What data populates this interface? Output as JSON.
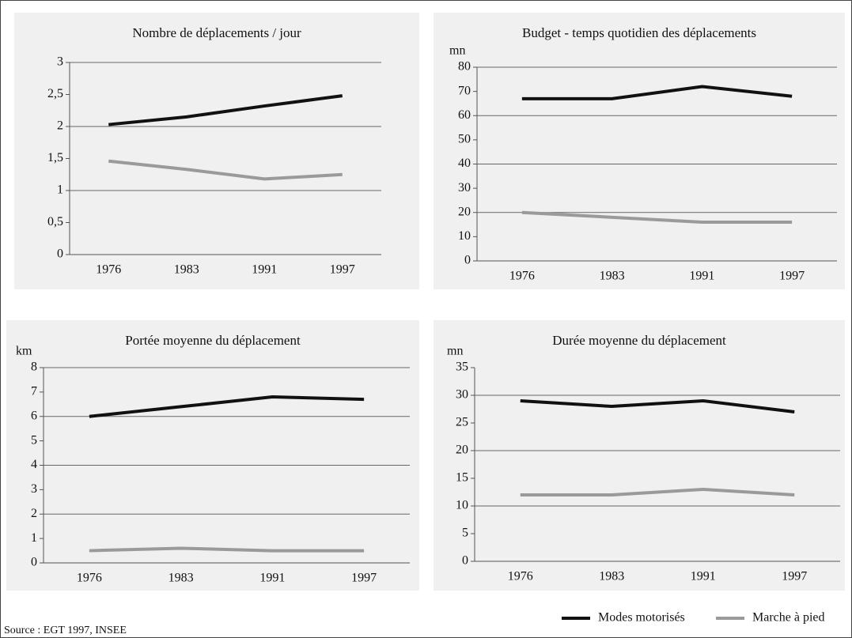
{
  "chart_data": [
    {
      "type": "line",
      "title": "Nombre de déplacements / jour",
      "categories": [
        "1976",
        "1983",
        "1991",
        "1997"
      ],
      "series": [
        {
          "values": [
            2.03,
            2.15,
            2.32,
            2.48
          ]
        },
        {
          "values": [
            1.46,
            1.33,
            1.18,
            1.25
          ]
        }
      ],
      "ylim": [
        0,
        3
      ],
      "yticks": [
        0,
        {
          "value": 0.5,
          "label": "0,5"
        },
        1,
        {
          "value": 1.5,
          "label": "1,5"
        },
        2,
        {
          "value": 2.5,
          "label": "2,5"
        },
        3
      ],
      "grid": true
    },
    {
      "type": "line",
      "title": "Budget - temps quotidien des déplacements",
      "ylabel": "mn",
      "categories": [
        "1976",
        "1983",
        "1991",
        "1997"
      ],
      "series": [
        {
          "values": [
            67,
            67,
            72,
            68
          ]
        },
        {
          "values": [
            20,
            18,
            16,
            16
          ]
        }
      ],
      "ylim": [
        0,
        80
      ],
      "yticks": [
        0,
        10,
        20,
        30,
        40,
        50,
        60,
        70,
        80
      ],
      "grid": true
    },
    {
      "type": "line",
      "title": "Portée moyenne du déplacement",
      "ylabel": "km",
      "categories": [
        "1976",
        "1983",
        "1991",
        "1997"
      ],
      "series": [
        {
          "values": [
            6.0,
            6.4,
            6.8,
            6.7
          ]
        },
        {
          "values": [
            0.5,
            0.6,
            0.5,
            0.5
          ]
        }
      ],
      "ylim": [
        0,
        8
      ],
      "yticks": [
        0,
        1,
        2,
        3,
        4,
        5,
        6,
        7,
        8
      ],
      "grid": true
    },
    {
      "type": "line",
      "title": "Durée moyenne du déplacement",
      "ylabel": "mn",
      "categories": [
        "1976",
        "1983",
        "1991",
        "1997"
      ],
      "series": [
        {
          "values": [
            29,
            28,
            29,
            27
          ]
        },
        {
          "values": [
            12,
            12,
            13,
            12
          ]
        }
      ],
      "ylim": [
        0,
        35
      ],
      "yticks": [
        0,
        5,
        10,
        15,
        20,
        25,
        30,
        35
      ],
      "grid": true
    }
  ],
  "legend": [
    {
      "name": "Modes motorisés",
      "color": "#111111"
    },
    {
      "name": "Marche à pied",
      "color": "#9a9a9a"
    }
  ],
  "source": "Source : EGT 1997, INSEE"
}
